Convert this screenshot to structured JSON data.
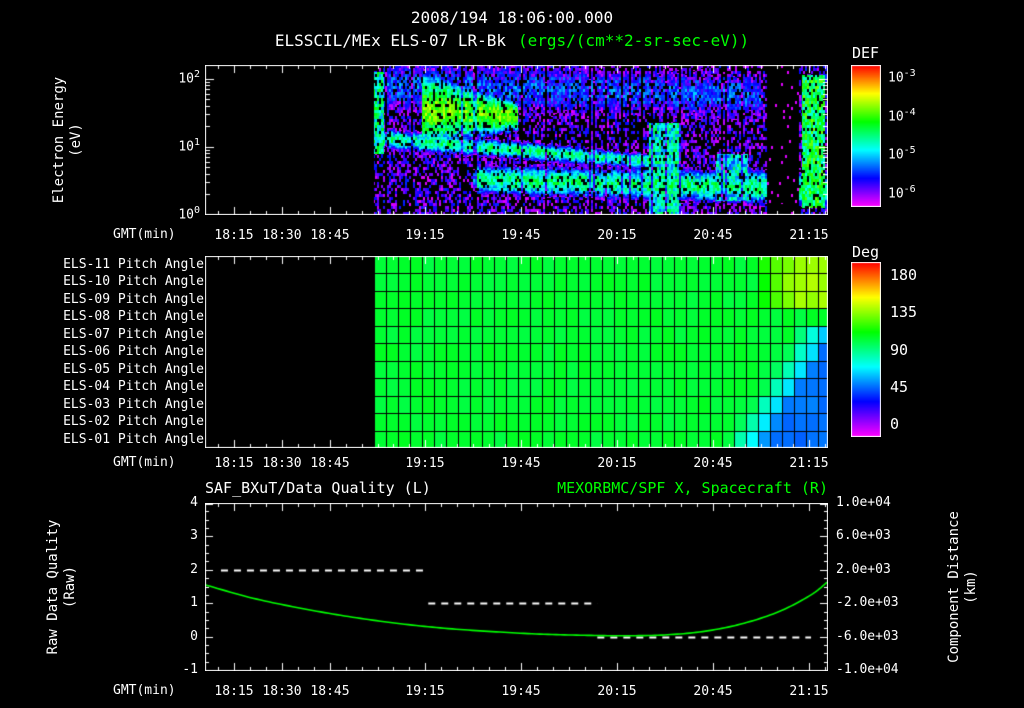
{
  "header": {
    "datetime": "2008/194 18:06:00.000",
    "instrument_title": "ELSSCIL/MEx ELS-07 LR-Bk",
    "units": "(ergs/(cm**2-sr-sec-eV))"
  },
  "colors": {
    "foreground": "#ffffff",
    "accent_green": "#00ff00",
    "background": "#000000"
  },
  "exp_base": "10",
  "time_axis": {
    "label": "GMT(min)",
    "epoch": "2008/194 18:06:00.000",
    "total_min": 195,
    "tick_labels": [
      "18:15",
      "18:30",
      "18:45",
      "19:15",
      "19:45",
      "20:15",
      "20:45",
      "21:15"
    ],
    "tick_minutes": [
      9,
      24,
      39,
      69,
      99,
      129,
      159,
      189
    ],
    "minor_start_min": 4,
    "minor_step_min": 5
  },
  "axis_titles": {
    "energy": [
      "Electron Energy",
      "(eV)"
    ],
    "quality": [
      "Raw Data Quality",
      "(Raw)"
    ],
    "distance": [
      "Component Distance",
      "(km)"
    ]
  },
  "chart_data": [
    {
      "type": "heatmap",
      "name": "electron-energy-spectrogram",
      "title": "ELSSCIL/MEx ELS-07 LR-Bk",
      "units": "ergs/(cm**2-sr-sec-eV)",
      "y_axis": {
        "label": "Electron Energy (eV)",
        "scale": "log10",
        "min_exp": 0,
        "max_exp": 2.2,
        "tick_exps": [
          "2",
          "1",
          "0"
        ]
      },
      "colorbar": {
        "label": "DEF",
        "tick_exps": [
          "-3",
          "-4",
          "-5",
          "-6"
        ],
        "min_log": -6,
        "max_log": -3
      },
      "data_start_min": 53,
      "background_log_def": -5.85,
      "noise_log_def": 0.55,
      "black_speckle": 0.15,
      "features": [
        {
          "type": "col",
          "name": "onset-edge",
          "t0": 53,
          "t1": 56,
          "e0": 0.9,
          "e1": 2.1,
          "amp": -4.6
        },
        {
          "type": "band",
          "name": "mid-energy-band",
          "t0": 55,
          "t1": 140,
          "e0": 1.12,
          "e1": 0.78,
          "s0": 0.14,
          "s1": 0.11,
          "amp": -4.55
        },
        {
          "type": "band",
          "name": "injection-blob",
          "t0": 68,
          "t1": 98,
          "e0": 1.55,
          "e1": 1.45,
          "s0": 0.5,
          "s1": 0.18,
          "amp": -4.0
        },
        {
          "type": "band",
          "name": "low-energy-band",
          "t0": 84,
          "t1": 195,
          "e0": 0.52,
          "e1": 0.38,
          "s0": 0.2,
          "s1": 0.24,
          "amp": -4.5
        },
        {
          "type": "band",
          "name": "upper-diffuse",
          "t0": 56,
          "t1": 174,
          "e0": 1.9,
          "e1": 1.75,
          "s0": 0.45,
          "s1": 0.4,
          "amp": -5.25
        },
        {
          "type": "col",
          "name": "bright-column",
          "t0": 139,
          "t1": 149,
          "e0": 0.0,
          "e1": 1.35,
          "amp": -4.7
        },
        {
          "type": "col",
          "name": "low-bright-patch",
          "t0": 160,
          "t1": 170,
          "e0": 0.2,
          "e1": 0.9,
          "amp": -4.8
        },
        {
          "type": "dark",
          "name": "data-gap",
          "t0": 176,
          "t1": 186
        },
        {
          "type": "col",
          "name": "right-bright-column",
          "t0": 187,
          "t1": 194,
          "e0": 0.1,
          "e1": 2.05,
          "amp": -4.35
        }
      ]
    },
    {
      "type": "heatmap",
      "name": "pitch-angle-panels",
      "rows": [
        "ELS-11 Pitch Angle",
        "ELS-10 Pitch Angle",
        "ELS-09 Pitch Angle",
        "ELS-08 Pitch Angle",
        "ELS-07 Pitch Angle",
        "ELS-06 Pitch Angle",
        "ELS-05 Pitch Angle",
        "ELS-04 Pitch Angle",
        "ELS-03 Pitch Angle",
        "ELS-02 Pitch Angle",
        "ELS-01 Pitch Angle"
      ],
      "colorbar": {
        "label": "Deg",
        "ticks": [
          "180",
          "135",
          "90",
          "45",
          "0"
        ],
        "min": 0,
        "max": 180
      },
      "data_start_min": 53,
      "cell_minutes": 3.75,
      "base_deg": 101,
      "transition": {
        "bottom_max_els": 7,
        "bottom_onset_min": 163,
        "bottom_onset_step_min": 3.5,
        "bottom_final_deg": 52,
        "top_min_els": 9,
        "top_onset_min": 171,
        "top_final_deg": 131,
        "ramp_min": 13
      }
    },
    {
      "type": "line",
      "name": "quality-and-spacecraft-x",
      "left_title": "SAF_BXuT/Data Quality (L)",
      "right_title": "MEXORBMC/SPF X, Spacecraft (R)",
      "left_axis": {
        "label": "Raw Data Quality (Raw)",
        "min": -1,
        "max": 4,
        "ticks": [
          "4",
          "3",
          "2",
          "1",
          "0",
          "-1"
        ]
      },
      "right_axis": {
        "label": "Component Distance (km)",
        "min": -10000,
        "max": 10000,
        "ticks": [
          "1.0e+04",
          "6.0e+03",
          "2.0e+03",
          "-2.0e+03",
          "-6.0e+03",
          "-1.0e+04"
        ]
      },
      "series": [
        {
          "name": "SAF_BXuT/Data Quality",
          "axis": "left",
          "style": "dashed",
          "color": "#ffffff",
          "segments": [
            {
              "t0": 5,
              "t1": 70,
              "value": 2
            },
            {
              "t0": 70,
              "t1": 123,
              "value": 1
            },
            {
              "t0": 123,
              "t1": 190,
              "value": 0
            }
          ]
        },
        {
          "name": "MEXORBMC/SPF X Spacecraft",
          "axis": "right",
          "style": "line",
          "color": "#00ff00",
          "t": [
            0,
            15,
            30,
            45,
            60,
            75,
            90,
            105,
            120,
            132,
            144,
            156,
            168,
            180,
            190,
            195
          ],
          "km": [
            200,
            -1400,
            -2600,
            -3600,
            -4400,
            -5000,
            -5400,
            -5700,
            -5850,
            -5900,
            -5800,
            -5400,
            -4500,
            -3000,
            -1000,
            500
          ]
        }
      ]
    }
  ]
}
